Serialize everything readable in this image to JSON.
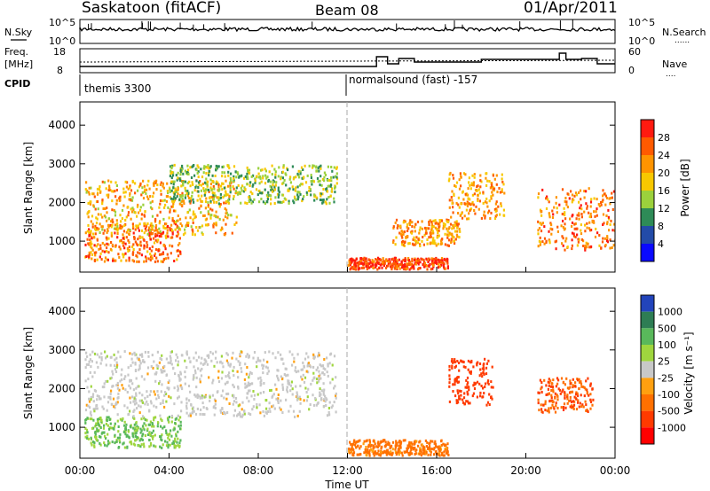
{
  "header": {
    "station": "Saskatoon (fitACF)",
    "beam": "Beam 08",
    "date": "01/Apr/2011"
  },
  "noise_panel": {
    "left_label": "N.Sky",
    "left_ticks": [
      "10^5",
      "10^0"
    ],
    "right_ticks": [
      "10^5",
      "10^0"
    ],
    "right_label": "N.Search",
    "right_legend_line": "......"
  },
  "freq_panel": {
    "left_label_1": "Freq.",
    "left_label_2": "[MHz]",
    "left_ticks": [
      "18",
      "8"
    ],
    "right_ticks": [
      "60",
      "0"
    ],
    "right_label": "Nave",
    "right_legend_line": "...."
  },
  "cpid": {
    "label": "CPID",
    "segments": [
      {
        "name": "themis 3300",
        "start_hour": 0
      },
      {
        "name": "normalsound (fast) -157",
        "start_hour": 12
      }
    ]
  },
  "power_panel": {
    "ylabel": "Slant Range [km]",
    "yticks": [
      "1000",
      "2000",
      "3000",
      "4000"
    ],
    "colorbar_label": "Power [dB]",
    "colorbar_ticks": [
      "28",
      "24",
      "20",
      "16",
      "12",
      "8",
      "4"
    ],
    "colors": [
      "#ff1a10",
      "#ff5a00",
      "#ff9400",
      "#f8c800",
      "#9bd13c",
      "#2e8b57",
      "#234ba8",
      "#0a0aff"
    ]
  },
  "velocity_panel": {
    "ylabel": "Slant Range [km]",
    "yticks": [
      "1000",
      "2000",
      "3000",
      "4000"
    ],
    "colorbar_label": "Velocity [m s⁻¹]",
    "colorbar_ticks": [
      "1000",
      "500",
      "100",
      "25",
      "-25",
      "-100",
      "-500",
      "-1000"
    ],
    "colors": [
      "#2244bb",
      "#2e7d54",
      "#59b85b",
      "#9fd63e",
      "#c8c8c8",
      "#ffa010",
      "#ff7000",
      "#ff3a00",
      "#ff0000"
    ]
  },
  "xaxis": {
    "ticks": [
      "00:00",
      "04:00",
      "08:00",
      "12:00",
      "16:00",
      "20:00",
      "00:00"
    ],
    "label": "Time UT"
  },
  "chart_data": {
    "type": "heatmap",
    "x_range_hours": [
      0,
      24
    ],
    "y_range_km": [
      200,
      4600
    ],
    "power_regions": [
      {
        "t0": 0.2,
        "t1": 4.5,
        "r0": 500,
        "r1": 1500,
        "dB": 22
      },
      {
        "t0": 0.2,
        "t1": 7.0,
        "r0": 1200,
        "r1": 2600,
        "dB": 18
      },
      {
        "t0": 4.0,
        "t1": 11.5,
        "r0": 2000,
        "r1": 3000,
        "dB": 12
      },
      {
        "t0": 12.0,
        "t1": 16.5,
        "r0": 300,
        "r1": 600,
        "dB": 26
      },
      {
        "t0": 14.0,
        "t1": 17.0,
        "r0": 900,
        "r1": 1600,
        "dB": 20
      },
      {
        "t0": 16.5,
        "t1": 19.0,
        "r0": 1600,
        "r1": 2800,
        "dB": 20
      },
      {
        "t0": 20.5,
        "t1": 24.0,
        "r0": 800,
        "r1": 2400,
        "dB": 22
      }
    ],
    "velocity_regions": [
      {
        "t0": 0.2,
        "t1": 4.5,
        "r0": 500,
        "r1": 1300,
        "v": 60
      },
      {
        "t0": 0.2,
        "t1": 11.5,
        "r0": 1300,
        "r1": 3000,
        "v": 0
      },
      {
        "t0": 12.0,
        "t1": 16.5,
        "r0": 300,
        "r1": 700,
        "v": -80
      },
      {
        "t0": 16.5,
        "t1": 18.5,
        "r0": 1600,
        "r1": 2800,
        "v": -400
      },
      {
        "t0": 20.5,
        "t1": 23.0,
        "r0": 1400,
        "r1": 2300,
        "v": -300
      }
    ]
  }
}
